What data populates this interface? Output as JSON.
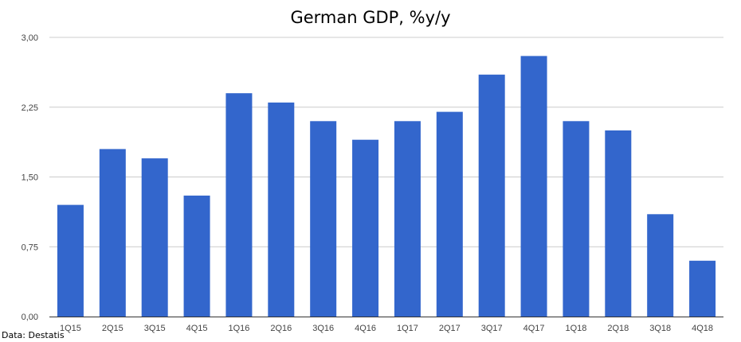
{
  "chart_data": {
    "type": "bar",
    "title": "German GDP, %y/y",
    "xlabel": "",
    "ylabel": "",
    "categories": [
      "1Q15",
      "2Q15",
      "3Q15",
      "4Q15",
      "1Q16",
      "2Q16",
      "3Q16",
      "4Q16",
      "1Q17",
      "2Q17",
      "3Q17",
      "4Q17",
      "1Q18",
      "2Q18",
      "3Q18",
      "4Q18"
    ],
    "values": [
      1.2,
      1.8,
      1.7,
      1.3,
      2.4,
      2.3,
      2.1,
      1.9,
      2.1,
      2.2,
      2.6,
      2.8,
      2.1,
      2.0,
      1.1,
      0.6
    ],
    "ylim": [
      0,
      3
    ],
    "yticks": [
      0,
      0.75,
      1.5,
      2.25,
      3
    ],
    "ytick_labels": [
      "0,00",
      "0,75",
      "1,50",
      "2,25",
      "3,00"
    ],
    "grid": true,
    "bar_color": "#3366cc",
    "grid_color": "#cccccc",
    "source": "Data: Destatis"
  }
}
